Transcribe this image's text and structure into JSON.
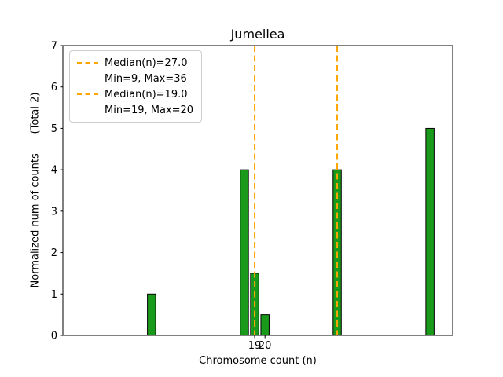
{
  "chart_data": {
    "type": "bar",
    "title": "Jumellea",
    "xlabel": "Chromosome count (n)",
    "ylabel": "Normalized num of counts      (Total 2)",
    "total_records": 2,
    "bars": [
      {
        "x": 9,
        "height": 1.0
      },
      {
        "x": 18,
        "height": 4.0
      },
      {
        "x": 19,
        "height": 1.5
      },
      {
        "x": 20,
        "height": 0.5
      },
      {
        "x": 27,
        "height": 4.0
      },
      {
        "x": 36,
        "height": 5.0
      }
    ],
    "bar_width": 0.8,
    "bar_color": "#1a9a1a",
    "bar_edge_color": "#000000",
    "median_lines": [
      {
        "x": 27.0,
        "color": "#ffa500",
        "style": "dashed"
      },
      {
        "x": 19.0,
        "color": "#ffa500",
        "style": "dashed"
      }
    ],
    "xlim": [
      0.4,
      38.2
    ],
    "ylim": [
      0,
      7
    ],
    "xticks": [
      19,
      20
    ],
    "yticks": [
      0,
      1,
      2,
      3,
      4,
      5,
      6,
      7
    ],
    "grid": false,
    "legend": {
      "position": "upper-left",
      "entries": [
        {
          "label_line1": "Median(n)=27.0",
          "label_line2": "Min=9, Max=36",
          "color": "#ffa500",
          "style": "dashed"
        },
        {
          "label_line1": "Median(n)=19.0",
          "label_line2": "Min=19, Max=20",
          "color": "#ffa500",
          "style": "dashed"
        }
      ]
    }
  }
}
